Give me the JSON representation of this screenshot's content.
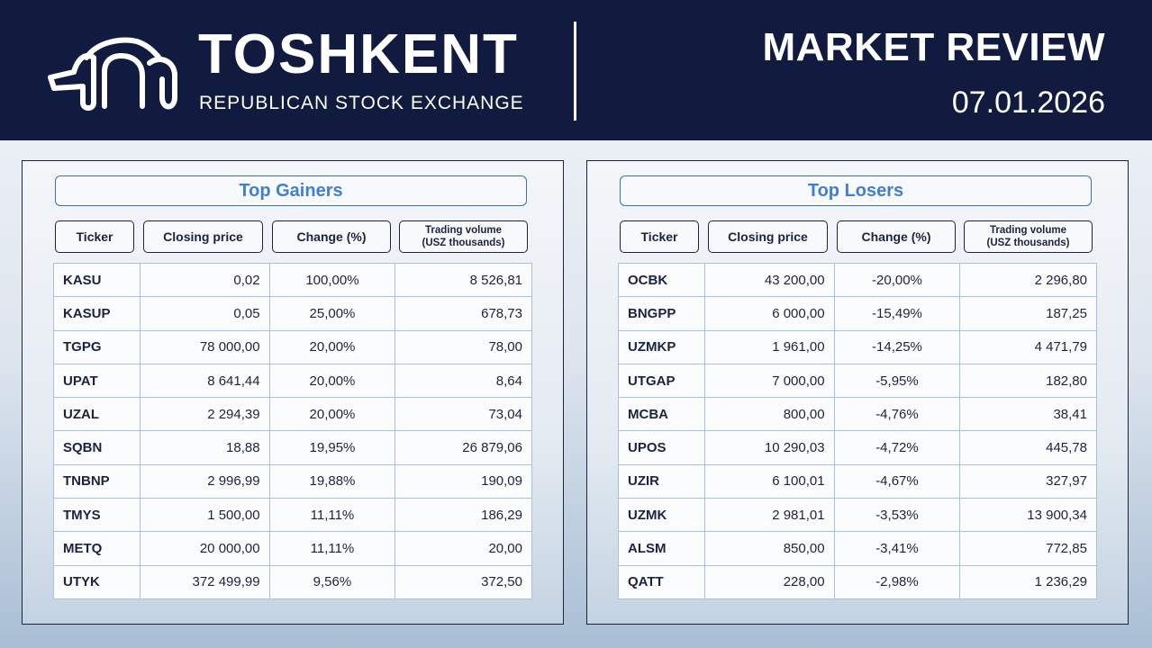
{
  "header": {
    "brand_title": "TOSHKENT",
    "brand_subtitle": "REPUBLICAN STOCK EXCHANGE",
    "review_title": "MARKET REVIEW",
    "review_date": "07.01.2026",
    "logo_icon": "exchange-logo-icon"
  },
  "columns": {
    "ticker": "Ticker",
    "closing_price": "Closing price",
    "change": "Change (%)",
    "volume_line1": "Trading volume",
    "volume_line2": "(USZ thousands)"
  },
  "colors": {
    "header_bg": "#111a3f",
    "accent_title": "#3f7fd0",
    "positive": "#2faa55",
    "negative": "#e03030"
  },
  "gainers": {
    "title": "Top Gainers",
    "rows": [
      {
        "ticker": "KASU",
        "price": "0,02",
        "change": "100,00%",
        "volume": "8 526,81"
      },
      {
        "ticker": "KASUP",
        "price": "0,05",
        "change": "25,00%",
        "volume": "678,73"
      },
      {
        "ticker": "TGPG",
        "price": "78 000,00",
        "change": "20,00%",
        "volume": "78,00"
      },
      {
        "ticker": "UPAT",
        "price": "8 641,44",
        "change": "20,00%",
        "volume": "8,64"
      },
      {
        "ticker": "UZAL",
        "price": "2 294,39",
        "change": "20,00%",
        "volume": "73,04"
      },
      {
        "ticker": "SQBN",
        "price": "18,88",
        "change": "19,95%",
        "volume": "26 879,06"
      },
      {
        "ticker": "TNBNP",
        "price": "2 996,99",
        "change": "19,88%",
        "volume": "190,09"
      },
      {
        "ticker": "TMYS",
        "price": "1 500,00",
        "change": "11,11%",
        "volume": "186,29"
      },
      {
        "ticker": "METQ",
        "price": "20 000,00",
        "change": "11,11%",
        "volume": "20,00"
      },
      {
        "ticker": "UTYK",
        "price": "372 499,99",
        "change": "9,56%",
        "volume": "372,50"
      }
    ]
  },
  "losers": {
    "title": "Top Losers",
    "rows": [
      {
        "ticker": "OCBK",
        "price": "43 200,00",
        "change": "-20,00%",
        "volume": "2 296,80"
      },
      {
        "ticker": "BNGPP",
        "price": "6 000,00",
        "change": "-15,49%",
        "volume": "187,25"
      },
      {
        "ticker": "UZMKP",
        "price": "1 961,00",
        "change": "-14,25%",
        "volume": "4 471,79"
      },
      {
        "ticker": "UTGAP",
        "price": "7 000,00",
        "change": "-5,95%",
        "volume": "182,80"
      },
      {
        "ticker": "MCBA",
        "price": "800,00",
        "change": "-4,76%",
        "volume": "38,41"
      },
      {
        "ticker": "UPOS",
        "price": "10 290,03",
        "change": "-4,72%",
        "volume": "445,78"
      },
      {
        "ticker": "UZIR",
        "price": "6 100,01",
        "change": "-4,67%",
        "volume": "327,97"
      },
      {
        "ticker": "UZMK",
        "price": "2 981,01",
        "change": "-3,53%",
        "volume": "13 900,34"
      },
      {
        "ticker": "ALSM",
        "price": "850,00",
        "change": "-3,41%",
        "volume": "772,85"
      },
      {
        "ticker": "QATT",
        "price": "228,00",
        "change": "-2,98%",
        "volume": "1 236,29"
      }
    ]
  }
}
